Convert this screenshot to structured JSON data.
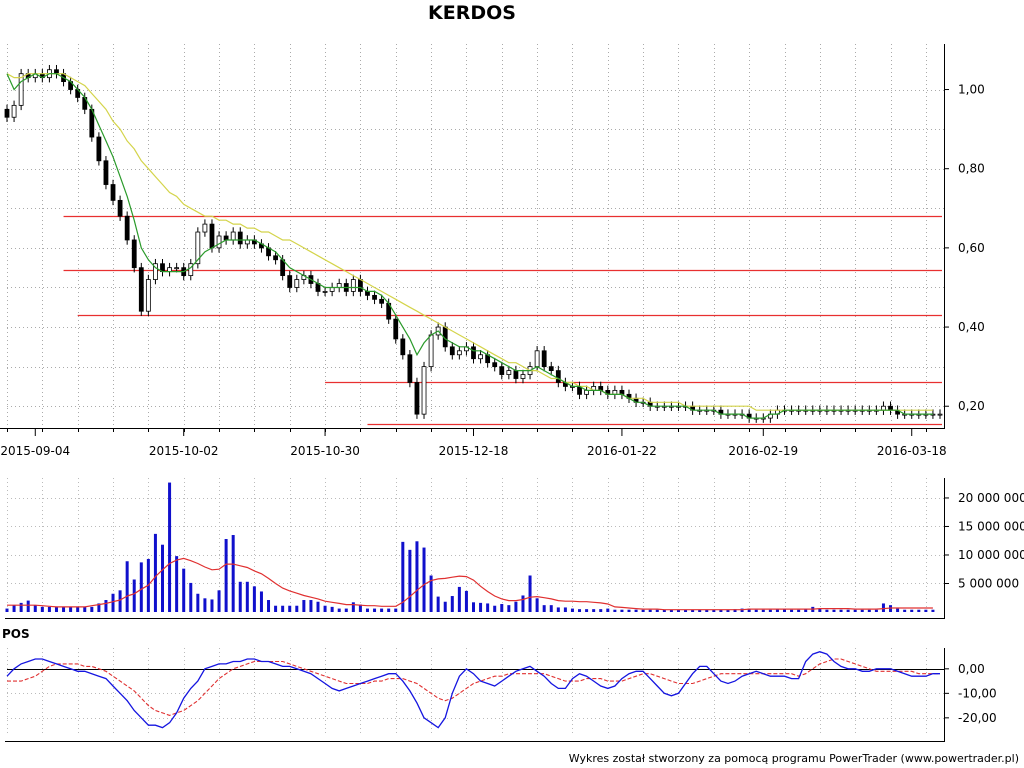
{
  "chart_data": [
    {
      "type": "candlestick",
      "title": "KERDOS",
      "x_tick_labels": [
        "2015-09-04",
        "2015-10-02",
        "2015-10-30",
        "2015-12-18",
        "2016-01-22",
        "2016-02-19",
        "2016-03-18"
      ],
      "y_tick_labels": [
        "1,00",
        "0,80",
        "0,60",
        "0,40",
        "0,20"
      ],
      "y_ticks": [
        1.0,
        0.8,
        0.6,
        0.4,
        0.2
      ],
      "ylim": [
        0.145,
        1.115
      ],
      "grid": true,
      "horizontal_lines": [
        {
          "value": 0.68,
          "from_bar": 8,
          "color": "#e83030"
        },
        {
          "value": 0.545,
          "from_bar": 8,
          "color": "#e83030"
        },
        {
          "value": 0.43,
          "from_bar": 10,
          "color": "#e83030"
        },
        {
          "value": 0.26,
          "from_bar": 45,
          "color": "#e83030"
        },
        {
          "value": 0.155,
          "from_bar": 51,
          "color": "#e83030"
        }
      ],
      "close": [
        0.93,
        0.96,
        1.04,
        1.03,
        1.04,
        1.03,
        1.05,
        1.04,
        1.02,
        1.0,
        0.98,
        0.95,
        0.88,
        0.82,
        0.76,
        0.72,
        0.68,
        0.62,
        0.55,
        0.44,
        0.52,
        0.56,
        0.54,
        0.55,
        0.55,
        0.53,
        0.56,
        0.64,
        0.66,
        0.6,
        0.63,
        0.62,
        0.64,
        0.61,
        0.62,
        0.61,
        0.6,
        0.58,
        0.57,
        0.53,
        0.5,
        0.52,
        0.53,
        0.51,
        0.49,
        0.49,
        0.5,
        0.51,
        0.49,
        0.52,
        0.49,
        0.48,
        0.47,
        0.46,
        0.42,
        0.37,
        0.33,
        0.26,
        0.18,
        0.3,
        0.38,
        0.4,
        0.35,
        0.33,
        0.34,
        0.35,
        0.32,
        0.33,
        0.31,
        0.3,
        0.28,
        0.29,
        0.27,
        0.28,
        0.3,
        0.34,
        0.3,
        0.29,
        0.26,
        0.25,
        0.25,
        0.23,
        0.24,
        0.25,
        0.24,
        0.23,
        0.24,
        0.23,
        0.22,
        0.21,
        0.21,
        0.2,
        0.2,
        0.2,
        0.2,
        0.2,
        0.2,
        0.19,
        0.19,
        0.19,
        0.19,
        0.18,
        0.18,
        0.18,
        0.18,
        0.17,
        0.17,
        0.17,
        0.18,
        0.19,
        0.19,
        0.19,
        0.19,
        0.19,
        0.19,
        0.19,
        0.19,
        0.19,
        0.19,
        0.19,
        0.19,
        0.19,
        0.19,
        0.19,
        0.2,
        0.19,
        0.18,
        0.18,
        0.18,
        0.18,
        0.18,
        0.18,
        0.18
      ],
      "sma_short": [
        1.04,
        1.0,
        1.02,
        1.03,
        1.04,
        1.03,
        1.04,
        1.04,
        1.03,
        1.02,
        1.0,
        0.98,
        0.95,
        0.91,
        0.87,
        0.83,
        0.78,
        0.73,
        0.67,
        0.6,
        0.57,
        0.55,
        0.54,
        0.54,
        0.54,
        0.54,
        0.55,
        0.57,
        0.59,
        0.6,
        0.61,
        0.62,
        0.62,
        0.62,
        0.62,
        0.62,
        0.61,
        0.6,
        0.59,
        0.57,
        0.55,
        0.54,
        0.53,
        0.52,
        0.51,
        0.5,
        0.5,
        0.5,
        0.5,
        0.5,
        0.5,
        0.49,
        0.49,
        0.48,
        0.46,
        0.43,
        0.4,
        0.37,
        0.33,
        0.36,
        0.38,
        0.39,
        0.37,
        0.36,
        0.35,
        0.35,
        0.34,
        0.34,
        0.33,
        0.32,
        0.31,
        0.3,
        0.29,
        0.29,
        0.29,
        0.3,
        0.29,
        0.28,
        0.27,
        0.26,
        0.25,
        0.25,
        0.24,
        0.24,
        0.24,
        0.23,
        0.23,
        0.23,
        0.22,
        0.21,
        0.21,
        0.2,
        0.2,
        0.2,
        0.2,
        0.2,
        0.2,
        0.19,
        0.19,
        0.19,
        0.19,
        0.18,
        0.18,
        0.18,
        0.18,
        0.17,
        0.17,
        0.17,
        0.18,
        0.18,
        0.19,
        0.19,
        0.19,
        0.19,
        0.19,
        0.19,
        0.19,
        0.19,
        0.19,
        0.19,
        0.19,
        0.19,
        0.19,
        0.19,
        0.19,
        0.19,
        0.19,
        0.18,
        0.18,
        0.18,
        0.18,
        0.18
      ],
      "sma_long": [
        1.04,
        1.03,
        1.03,
        1.04,
        1.04,
        1.04,
        1.04,
        1.04,
        1.04,
        1.03,
        1.02,
        1.01,
        0.99,
        0.97,
        0.95,
        0.92,
        0.9,
        0.87,
        0.85,
        0.82,
        0.8,
        0.78,
        0.76,
        0.74,
        0.73,
        0.71,
        0.7,
        0.69,
        0.68,
        0.68,
        0.67,
        0.67,
        0.66,
        0.66,
        0.65,
        0.65,
        0.64,
        0.64,
        0.63,
        0.62,
        0.62,
        0.61,
        0.6,
        0.59,
        0.58,
        0.57,
        0.56,
        0.55,
        0.54,
        0.53,
        0.52,
        0.51,
        0.5,
        0.49,
        0.48,
        0.47,
        0.46,
        0.45,
        0.44,
        0.43,
        0.42,
        0.41,
        0.4,
        0.39,
        0.38,
        0.37,
        0.36,
        0.35,
        0.34,
        0.33,
        0.32,
        0.31,
        0.31,
        0.3,
        0.29,
        0.29,
        0.28,
        0.27,
        0.27,
        0.26,
        0.26,
        0.25,
        0.25,
        0.24,
        0.24,
        0.23,
        0.23,
        0.23,
        0.22,
        0.22,
        0.22,
        0.21,
        0.21,
        0.21,
        0.21,
        0.21,
        0.2,
        0.2,
        0.2,
        0.2,
        0.2,
        0.2,
        0.2,
        0.2,
        0.2,
        0.2,
        0.19,
        0.19,
        0.19,
        0.19,
        0.19,
        0.19,
        0.19,
        0.19,
        0.19,
        0.19,
        0.19,
        0.19,
        0.19,
        0.19,
        0.19,
        0.19,
        0.19,
        0.19,
        0.19,
        0.19,
        0.19,
        0.19,
        0.19,
        0.19,
        0.19,
        0.19
      ],
      "colors": {
        "bull": "#ffffff",
        "bear": "#000000",
        "sma_short": "#2a9a2a",
        "sma_long": "#d4d44a",
        "level": "#e83030"
      }
    },
    {
      "type": "bar",
      "title": "",
      "y_tick_labels": [
        "20 000 000",
        "15 000 000",
        "10 000 000",
        "5 000 000"
      ],
      "y_ticks": [
        20000000,
        15000000,
        10000000,
        5000000
      ],
      "ylim": [
        0,
        23500000
      ],
      "volume": [
        600000,
        1200000,
        1600000,
        2000000,
        1200000,
        900000,
        900000,
        900000,
        900000,
        900000,
        900000,
        900000,
        900000,
        1500000,
        2100000,
        3200000,
        3800000,
        8900000,
        5700000,
        8700000,
        9300000,
        13700000,
        11800000,
        22700000,
        9800000,
        7600000,
        5100000,
        3200000,
        2400000,
        2200000,
        3800000,
        12800000,
        13500000,
        5300000,
        5300000,
        4500000,
        3600000,
        2100000,
        1100000,
        1100000,
        1100000,
        1100000,
        2100000,
        2100000,
        1800000,
        1100000,
        900000,
        600000,
        600000,
        1700000,
        1300000,
        600000,
        600000,
        600000,
        600000,
        600000,
        12300000,
        10900000,
        12400000,
        11300000,
        6400000,
        2700000,
        1800000,
        2800000,
        4400000,
        3700000,
        1700000,
        1600000,
        1500000,
        1100000,
        1400000,
        1200000,
        1800000,
        2900000,
        6400000,
        2400000,
        1200000,
        1200000,
        800000,
        800000,
        600000,
        500000,
        500000,
        500000,
        500000,
        600000,
        400000,
        400000,
        400000,
        400000,
        400000,
        400000,
        400000,
        400000,
        400000,
        400000,
        400000,
        400000,
        400000,
        400000,
        400000,
        400000,
        400000,
        500000,
        600000,
        600000,
        400000,
        400000,
        400000,
        600000,
        500000,
        400000,
        400000,
        600000,
        900000,
        600000,
        400000,
        400000,
        400000,
        400000,
        400000,
        400000,
        400000,
        400000,
        1500000,
        1200000,
        600000,
        400000,
        400000,
        400000,
        400000,
        400000
      ],
      "volume_ma": [
        1200000,
        1200000,
        1200000,
        1200000,
        1200000,
        1100000,
        1000000,
        900000,
        900000,
        900000,
        900000,
        900000,
        1100000,
        1300000,
        1500000,
        1800000,
        2100000,
        2800000,
        3200000,
        4000000,
        4700000,
        6200000,
        7400000,
        8500000,
        9100000,
        9400000,
        9000000,
        8500000,
        7900000,
        7400000,
        7500000,
        8400000,
        8400000,
        8100000,
        7800000,
        7200000,
        6700000,
        5900000,
        5000000,
        4200000,
        3700000,
        3300000,
        2900000,
        2600000,
        2300000,
        1900000,
        1700000,
        1500000,
        1300000,
        1300000,
        1200000,
        1100000,
        1100000,
        1000000,
        1000000,
        1000000,
        1700000,
        2700000,
        3800000,
        4800000,
        5500000,
        5800000,
        5900000,
        6100000,
        6300000,
        6200000,
        5600000,
        4500000,
        3600000,
        2800000,
        2300000,
        2000000,
        2000000,
        2200000,
        2600000,
        2700000,
        2500000,
        2300000,
        2000000,
        1900000,
        1900000,
        1800000,
        1800000,
        1700000,
        1600000,
        1400000,
        900000,
        800000,
        700000,
        600000,
        500000,
        500000,
        500000,
        400000,
        400000,
        400000,
        400000,
        400000,
        400000,
        400000,
        400000,
        400000,
        400000,
        400000,
        400000,
        500000,
        500000,
        500000,
        500000,
        500000,
        500000,
        500000,
        500000,
        500000,
        500000,
        600000,
        600000,
        600000,
        600000,
        600000,
        500000,
        500000,
        500000,
        500000,
        600000,
        700000,
        700000,
        700000,
        700000,
        700000,
        700000,
        700000
      ],
      "colors": {
        "bars": "#1010cc",
        "ma": "#e03030"
      }
    },
    {
      "type": "line",
      "title": "POS",
      "y_tick_labels": [
        "0,00",
        "-10,00",
        "-20,00"
      ],
      "y_ticks": [
        0,
        -10,
        -20
      ],
      "ylim": [
        -27,
        8.5
      ],
      "pos": [
        -3,
        0,
        2,
        3,
        4,
        4,
        3,
        2,
        1,
        0,
        -1,
        -1,
        -2,
        -3,
        -4,
        -7,
        -10,
        -13,
        -17,
        -20,
        -23,
        -23,
        -24,
        -22,
        -18,
        -12,
        -8,
        -5,
        0,
        1,
        2,
        2,
        3,
        3,
        4,
        4,
        3,
        3,
        2,
        1,
        1,
        0,
        -1,
        -2,
        -4,
        -6,
        -8,
        -9,
        -8,
        -7,
        -6,
        -5,
        -4,
        -3,
        -2,
        -2,
        -5,
        -9,
        -14,
        -20,
        -22,
        -24,
        -20,
        -10,
        -3,
        0,
        -2,
        -5,
        -6,
        -7,
        -5,
        -3,
        -1,
        0,
        1,
        -1,
        -3,
        -6,
        -8,
        -8,
        -4,
        -2,
        -3,
        -5,
        -7,
        -8,
        -7,
        -4,
        -2,
        -1,
        -1,
        -4,
        -7,
        -10,
        -11,
        -10,
        -6,
        -2,
        1,
        1,
        -2,
        -5,
        -6,
        -5,
        -3,
        -2,
        -1,
        -2,
        -3,
        -3,
        -3,
        -4,
        -4,
        3,
        6,
        7,
        6,
        3,
        1,
        0,
        0,
        -1,
        -1,
        0,
        0,
        0,
        -1,
        -2,
        -3,
        -3,
        -3,
        -2,
        -2
      ],
      "pos_signal": [
        -5,
        -5,
        -5,
        -4,
        -3,
        -1,
        1,
        2,
        2,
        2,
        2,
        1,
        1,
        0,
        -1,
        -3,
        -5,
        -7,
        -9,
        -12,
        -15,
        -17,
        -18,
        -19,
        -18,
        -17,
        -15,
        -13,
        -10,
        -7,
        -4,
        -2,
        0,
        1,
        2,
        3,
        3,
        3,
        3,
        3,
        2,
        1,
        0,
        -1,
        -2,
        -3,
        -4,
        -5,
        -6,
        -6,
        -6,
        -6,
        -5,
        -5,
        -4,
        -4,
        -4,
        -5,
        -6,
        -8,
        -10,
        -12,
        -13,
        -12,
        -10,
        -8,
        -6,
        -5,
        -4,
        -3,
        -3,
        -2,
        -2,
        -2,
        -2,
        -2,
        -2,
        -3,
        -4,
        -5,
        -5,
        -5,
        -4,
        -4,
        -4,
        -5,
        -5,
        -5,
        -4,
        -3,
        -2,
        -2,
        -3,
        -4,
        -5,
        -6,
        -6,
        -6,
        -5,
        -4,
        -3,
        -2,
        -2,
        -2,
        -2,
        -2,
        -2,
        -2,
        -2,
        -2,
        -2,
        -2,
        -3,
        -2,
        0,
        2,
        3,
        4,
        4,
        3,
        2,
        1,
        0,
        -1,
        -1,
        -1,
        -1,
        -1,
        -1,
        -2,
        -2,
        -2,
        -2
      ],
      "colors": {
        "pos": "#1515e0",
        "signal": "#e03030"
      }
    }
  ],
  "footer": "Wykres został stworzony za pomocą programu PowerTrader (www.powertrader.pl)"
}
